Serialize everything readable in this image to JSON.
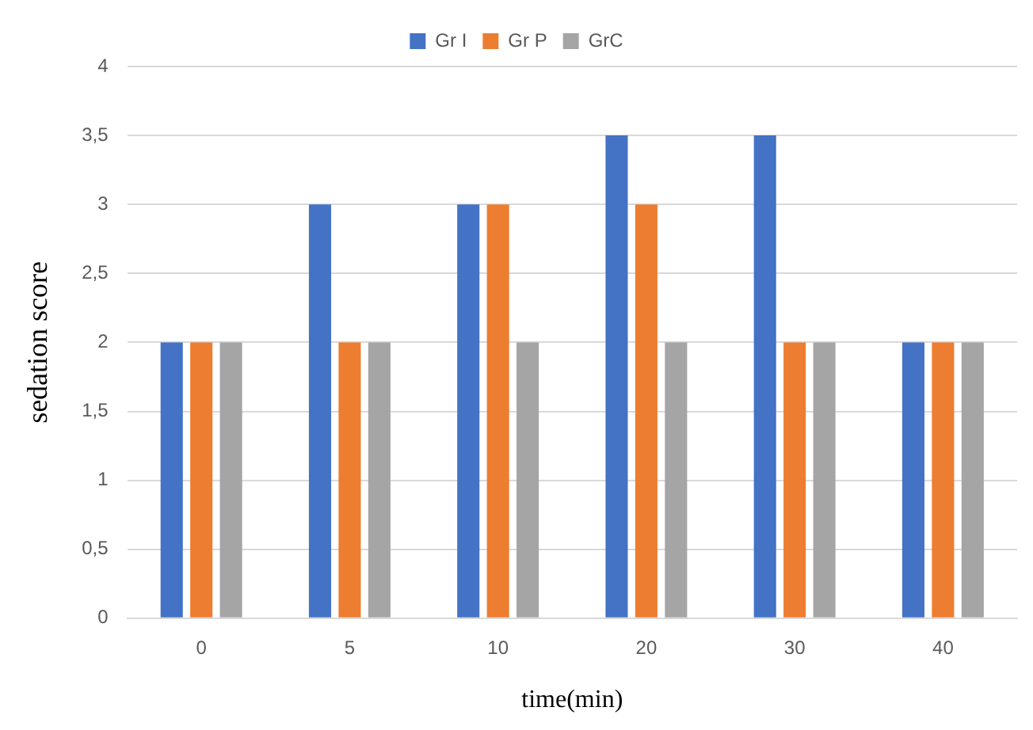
{
  "chart_data": {
    "type": "bar",
    "xlabel": "time(min)",
    "ylabel": "sedation score",
    "categories": [
      "0",
      "5",
      "10",
      "20",
      "30",
      "40"
    ],
    "series": [
      {
        "name": "Gr I",
        "color": "#4472c4",
        "values": [
          2,
          3,
          3,
          3.5,
          3.5,
          2
        ]
      },
      {
        "name": "Gr P",
        "color": "#ed7d31",
        "values": [
          2,
          2,
          3,
          3,
          2,
          2
        ]
      },
      {
        "name": "GrC",
        "color": "#a5a5a5",
        "values": [
          2,
          2,
          2,
          2,
          2,
          2
        ]
      }
    ],
    "ylim": [
      0,
      4
    ],
    "yticks": [
      0,
      {
        "value": 0.5,
        "label": "0,5"
      },
      1,
      {
        "value": 1.5,
        "label": "1,5"
      },
      2,
      {
        "value": 2.5,
        "label": "2,5"
      },
      3,
      {
        "value": 3.5,
        "label": "3,5"
      },
      4
    ],
    "grid": "y",
    "legend": "top"
  }
}
